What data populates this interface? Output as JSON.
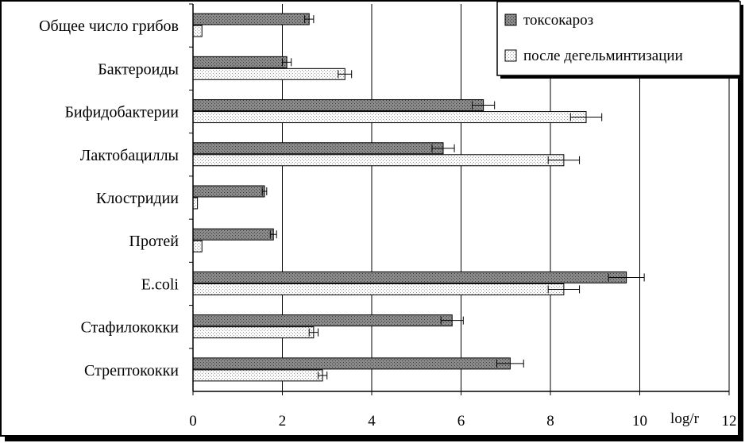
{
  "chart_data": {
    "type": "bar",
    "orientation": "horizontal",
    "categories": [
      "Общее число грибов",
      "Бактероиды",
      "Бифидобактерии",
      "Лактобациллы",
      "Клостридии",
      "Протей",
      "E.coli",
      "Стафилококки",
      "Стрептококки"
    ],
    "series": [
      {
        "name": "токсокароз",
        "values": [
          2.6,
          2.1,
          6.5,
          5.6,
          1.6,
          1.8,
          9.7,
          5.8,
          7.1
        ],
        "errors": [
          0.1,
          0.1,
          0.25,
          0.25,
          0.05,
          0.07,
          0.4,
          0.25,
          0.3
        ],
        "color": "#8c8c8c"
      },
      {
        "name": "после дегельминтизации",
        "values": [
          0.2,
          3.4,
          8.8,
          8.3,
          0.1,
          0.2,
          8.3,
          2.7,
          2.9
        ],
        "errors": [
          0.0,
          0.15,
          0.35,
          0.35,
          0.0,
          0.0,
          0.35,
          0.1,
          0.1
        ],
        "color": "#f4f4f4"
      }
    ],
    "xlabel": "log/r",
    "ylabel": "",
    "xlim": [
      0,
      12
    ],
    "xticks": [
      0,
      2,
      4,
      6,
      8,
      10,
      12
    ],
    "grid": "vertical",
    "legend_position": "top-right"
  }
}
